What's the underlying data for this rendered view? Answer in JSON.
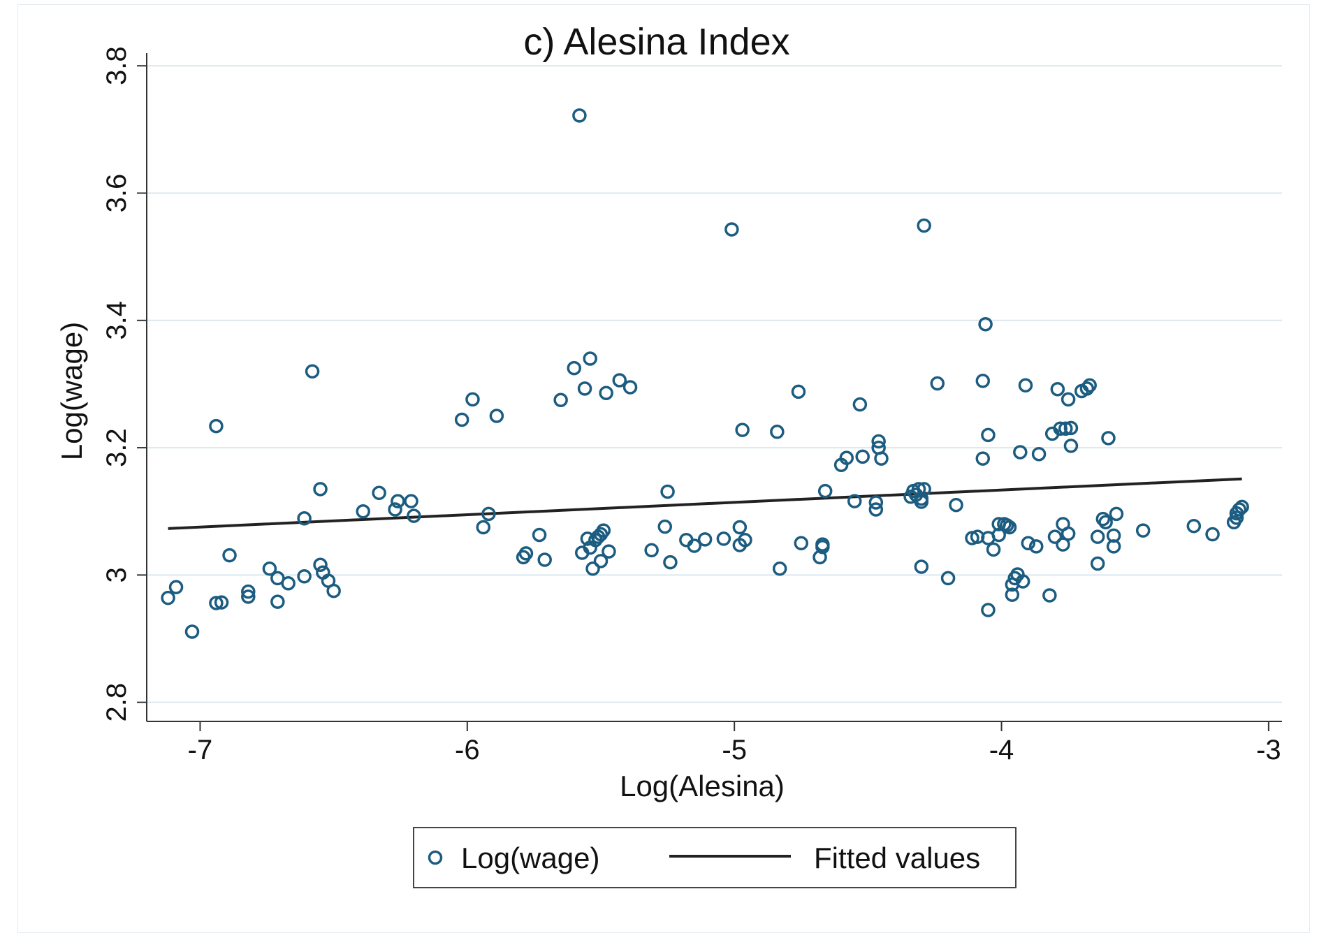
{
  "chart_data": {
    "type": "scatter",
    "title": "c) Alesina Index",
    "xlabel": "Log(Alesina)",
    "ylabel": "Log(wage)",
    "xlim": [
      -7.2,
      -2.95
    ],
    "ylim": [
      2.77,
      3.82
    ],
    "xticks": [
      -7,
      -6,
      -5,
      -4,
      -3
    ],
    "xtick_labels": [
      "-7",
      "-6",
      "-5",
      "-4",
      "-3"
    ],
    "yticks": [
      2.8,
      3,
      3.2,
      3.4,
      3.6,
      3.8
    ],
    "ytick_labels": [
      "2.8",
      "3",
      "3.2",
      "3.4",
      "3.6",
      "3.8"
    ],
    "grid": true,
    "legend_position": "bottom",
    "colors": {
      "points": "#1b5c80",
      "fit": "#222222",
      "grid": "#dbe8ee",
      "axis": "#333333"
    },
    "series": [
      {
        "name": "Log(wage)",
        "kind": "scatter",
        "points": [
          [
            -7.12,
            2.964
          ],
          [
            -7.09,
            2.981
          ],
          [
            -7.03,
            2.911
          ],
          [
            -6.94,
            3.234
          ],
          [
            -6.94,
            2.956
          ],
          [
            -6.92,
            2.957
          ],
          [
            -6.89,
            3.031
          ],
          [
            -6.82,
            2.974
          ],
          [
            -6.82,
            2.966
          ],
          [
            -6.74,
            3.01
          ],
          [
            -6.71,
            2.958
          ],
          [
            -6.71,
            2.995
          ],
          [
            -6.67,
            2.987
          ],
          [
            -6.61,
            2.998
          ],
          [
            -6.61,
            3.089
          ],
          [
            -6.58,
            3.32
          ],
          [
            -6.55,
            3.016
          ],
          [
            -6.55,
            3.135
          ],
          [
            -6.54,
            3.004
          ],
          [
            -6.52,
            2.991
          ],
          [
            -6.5,
            2.975
          ],
          [
            -6.39,
            3.1
          ],
          [
            -6.33,
            3.129
          ],
          [
            -6.27,
            3.103
          ],
          [
            -6.26,
            3.116
          ],
          [
            -6.21,
            3.116
          ],
          [
            -6.2,
            3.093
          ],
          [
            -6.02,
            3.244
          ],
          [
            -5.98,
            3.276
          ],
          [
            -5.94,
            3.075
          ],
          [
            -5.92,
            3.096
          ],
          [
            -5.89,
            3.25
          ],
          [
            -5.79,
            3.028
          ],
          [
            -5.78,
            3.034
          ],
          [
            -5.73,
            3.063
          ],
          [
            -5.71,
            3.024
          ],
          [
            -5.65,
            3.275
          ],
          [
            -5.6,
            3.325
          ],
          [
            -5.58,
            3.722
          ],
          [
            -5.57,
            3.035
          ],
          [
            -5.56,
            3.293
          ],
          [
            -5.55,
            3.057
          ],
          [
            -5.54,
            3.34
          ],
          [
            -5.54,
            3.043
          ],
          [
            -5.53,
            3.01
          ],
          [
            -5.52,
            3.055
          ],
          [
            -5.51,
            3.06
          ],
          [
            -5.5,
            3.064
          ],
          [
            -5.5,
            3.022
          ],
          [
            -5.49,
            3.07
          ],
          [
            -5.48,
            3.286
          ],
          [
            -5.47,
            3.037
          ],
          [
            -5.43,
            3.306
          ],
          [
            -5.39,
            3.295
          ],
          [
            -5.31,
            3.039
          ],
          [
            -5.26,
            3.076
          ],
          [
            -5.25,
            3.131
          ],
          [
            -5.24,
            3.02
          ],
          [
            -5.18,
            3.055
          ],
          [
            -5.15,
            3.046
          ],
          [
            -5.11,
            3.056
          ],
          [
            -5.04,
            3.057
          ],
          [
            -5.01,
            3.543
          ],
          [
            -4.98,
            3.047
          ],
          [
            -4.98,
            3.075
          ],
          [
            -4.97,
            3.228
          ],
          [
            -4.96,
            3.055
          ],
          [
            -4.84,
            3.225
          ],
          [
            -4.83,
            3.01
          ],
          [
            -4.76,
            3.288
          ],
          [
            -4.75,
            3.05
          ],
          [
            -4.68,
            3.028
          ],
          [
            -4.67,
            3.044
          ],
          [
            -4.67,
            3.048
          ],
          [
            -4.66,
            3.132
          ],
          [
            -4.6,
            3.173
          ],
          [
            -4.58,
            3.184
          ],
          [
            -4.55,
            3.116
          ],
          [
            -4.53,
            3.268
          ],
          [
            -4.52,
            3.186
          ],
          [
            -4.47,
            3.103
          ],
          [
            -4.47,
            3.114
          ],
          [
            -4.46,
            3.21
          ],
          [
            -4.46,
            3.2
          ],
          [
            -4.45,
            3.183
          ],
          [
            -4.34,
            3.123
          ],
          [
            -4.33,
            3.132
          ],
          [
            -4.32,
            3.126
          ],
          [
            -4.31,
            3.135
          ],
          [
            -4.3,
            3.013
          ],
          [
            -4.3,
            3.12
          ],
          [
            -4.3,
            3.115
          ],
          [
            -4.29,
            3.549
          ],
          [
            -4.29,
            3.135
          ],
          [
            -4.24,
            3.301
          ],
          [
            -4.2,
            2.995
          ],
          [
            -4.17,
            3.11
          ],
          [
            -4.11,
            3.058
          ],
          [
            -4.09,
            3.06
          ],
          [
            -4.07,
            3.305
          ],
          [
            -4.07,
            3.183
          ],
          [
            -4.06,
            3.394
          ],
          [
            -4.05,
            3.058
          ],
          [
            -4.05,
            3.22
          ],
          [
            -4.05,
            2.945
          ],
          [
            -4.03,
            3.04
          ],
          [
            -4.01,
            3.063
          ],
          [
            -4.01,
            3.08
          ],
          [
            -3.99,
            3.08
          ],
          [
            -3.98,
            3.078
          ],
          [
            -3.97,
            3.075
          ],
          [
            -3.96,
            2.985
          ],
          [
            -3.96,
            2.969
          ],
          [
            -3.95,
            2.995
          ],
          [
            -3.94,
            3.001
          ],
          [
            -3.93,
            3.193
          ],
          [
            -3.92,
            2.99
          ],
          [
            -3.91,
            3.298
          ],
          [
            -3.9,
            3.05
          ],
          [
            -3.87,
            3.045
          ],
          [
            -3.86,
            3.19
          ],
          [
            -3.82,
            2.968
          ],
          [
            -3.81,
            3.222
          ],
          [
            -3.8,
            3.06
          ],
          [
            -3.79,
            3.292
          ],
          [
            -3.78,
            3.23
          ],
          [
            -3.77,
            3.048
          ],
          [
            -3.77,
            3.08
          ],
          [
            -3.76,
            3.23
          ],
          [
            -3.75,
            3.276
          ],
          [
            -3.75,
            3.065
          ],
          [
            -3.74,
            3.203
          ],
          [
            -3.74,
            3.231
          ],
          [
            -3.7,
            3.289
          ],
          [
            -3.68,
            3.293
          ],
          [
            -3.67,
            3.298
          ],
          [
            -3.64,
            3.018
          ],
          [
            -3.64,
            3.06
          ],
          [
            -3.62,
            3.088
          ],
          [
            -3.61,
            3.083
          ],
          [
            -3.6,
            3.215
          ],
          [
            -3.58,
            3.062
          ],
          [
            -3.58,
            3.045
          ],
          [
            -3.57,
            3.096
          ],
          [
            -3.47,
            3.07
          ],
          [
            -3.28,
            3.077
          ],
          [
            -3.21,
            3.064
          ],
          [
            -3.13,
            3.083
          ],
          [
            -3.12,
            3.09
          ],
          [
            -3.12,
            3.097
          ],
          [
            -3.11,
            3.103
          ],
          [
            -3.1,
            3.107
          ]
        ]
      },
      {
        "name": "Fitted values",
        "kind": "line",
        "x": [
          -7.12,
          -3.1
        ],
        "y": [
          3.073,
          3.151
        ]
      }
    ]
  },
  "legend": {
    "items": [
      {
        "label": "Log(wage)",
        "marker": "circle"
      },
      {
        "label": "Fitted values",
        "marker": "line"
      }
    ]
  }
}
